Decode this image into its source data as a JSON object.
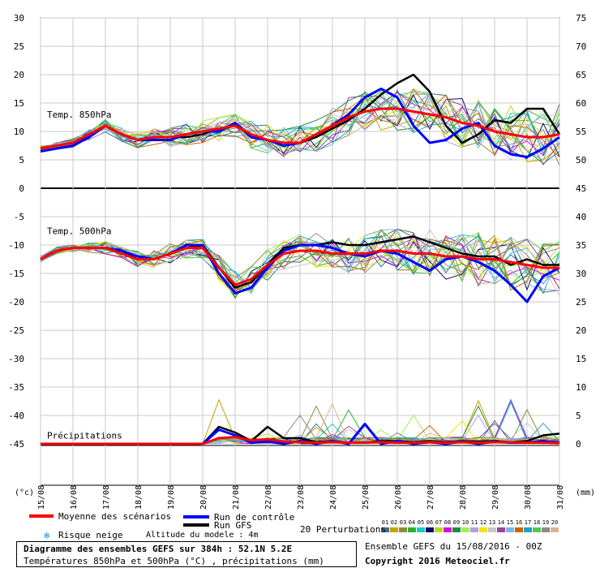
{
  "chart_data": {
    "type": "line",
    "panels": [
      {
        "name": "t850",
        "label": "Temp. 850hPa",
        "ylim_left": [
          0,
          30
        ],
        "ylim_right": [
          45,
          75
        ]
      },
      {
        "name": "t500",
        "label": "Temp. 500hPa",
        "ylim_left": [
          -25,
          -5
        ],
        "ylim_right": [
          20,
          40
        ]
      },
      {
        "name": "precip",
        "label": "Précipitations",
        "ylim_left": [
          -45,
          -30
        ],
        "ylim_right": [
          0,
          15
        ]
      }
    ],
    "y_left_ticks": [
      30,
      25,
      20,
      15,
      10,
      5,
      0,
      -5,
      -10,
      -15,
      -20,
      -25,
      -30,
      -35,
      -40,
      -45
    ],
    "y_right_ticks": [
      75,
      70,
      65,
      60,
      55,
      50,
      45,
      40,
      35,
      30,
      25,
      20,
      15,
      10,
      5,
      0
    ],
    "y_left_unit": "(°c)",
    "y_right_unit": "(mm)",
    "x_dates": [
      "15/08",
      "16/08",
      "17/08",
      "18/08",
      "19/08",
      "20/08",
      "21/08",
      "22/08",
      "23/08",
      "24/08",
      "25/08",
      "26/08",
      "27/08",
      "28/08",
      "29/08",
      "30/08",
      "31/08"
    ],
    "x_days": [
      0,
      0.5,
      1,
      1.5,
      2,
      2.5,
      3,
      3.5,
      4,
      4.5,
      5,
      5.5,
      6,
      6.5,
      7,
      7.5,
      8,
      8.5,
      9,
      9.5,
      10,
      10.5,
      11,
      11.5,
      12,
      12.5,
      13,
      13.5,
      14,
      14.5,
      15,
      15.5,
      16
    ],
    "series": [
      {
        "name": "Moyenne des scénarios",
        "color": "#ff0000",
        "t850": [
          7,
          7.5,
          8,
          9.5,
          11,
          9.5,
          8.5,
          9,
          9,
          9.5,
          10,
          10.5,
          11,
          9.5,
          8.5,
          8,
          8,
          9.5,
          11,
          12.5,
          13.5,
          14,
          14,
          13.5,
          13,
          12.5,
          11.5,
          11,
          10,
          9.5,
          9,
          9,
          9.5
        ],
        "t500": [
          -12.5,
          -11,
          -10.5,
          -10.5,
          -10.5,
          -11.5,
          -12.5,
          -12.5,
          -11.5,
          -10.5,
          -10.5,
          -14,
          -17,
          -16,
          -13.5,
          -11.5,
          -11,
          -11,
          -11.5,
          -11.5,
          -11.5,
          -11,
          -11,
          -11.5,
          -11.5,
          -12,
          -12,
          -12.5,
          -12.5,
          -13,
          -13.5,
          -14,
          -14
        ],
        "precip": [
          0,
          0,
          0,
          0,
          0,
          0,
          0,
          0,
          0,
          0,
          0,
          1,
          1.2,
          0.6,
          0.8,
          0.4,
          0.3,
          0.2,
          0.3,
          0.2,
          0.2,
          0.3,
          0.2,
          0.2,
          0.3,
          0.2,
          0.3,
          0.2,
          0.3,
          0.3,
          0.2,
          0.2,
          0.1
        ]
      },
      {
        "name": "Run de contrôle",
        "color": "#0000ff",
        "t850": [
          6.5,
          7,
          7.5,
          9,
          11,
          9.5,
          8.5,
          8.5,
          8.5,
          9.5,
          10,
          10,
          11.5,
          9,
          8.5,
          7.5,
          8,
          9.5,
          11,
          13,
          16,
          17.5,
          16,
          11,
          8,
          8.5,
          10.5,
          11.5,
          7.5,
          6,
          5.5,
          7,
          9
        ],
        "t500": [
          -12.5,
          -11,
          -10.5,
          -10.5,
          -10.5,
          -11,
          -12,
          -12.5,
          -11.5,
          -10,
          -10,
          -15,
          -18.5,
          -17.5,
          -14,
          -11,
          -10,
          -10,
          -10.5,
          -11.5,
          -12,
          -11,
          -11.5,
          -13,
          -14.5,
          -12.5,
          -12,
          -13,
          -14.5,
          -17,
          -20,
          -15.5,
          -14
        ],
        "precip": [
          0,
          0,
          0,
          0,
          0,
          0,
          0,
          0,
          0,
          0,
          0,
          2.5,
          1.5,
          0.2,
          0.4,
          0,
          0.5,
          0,
          0.5,
          0,
          3.5,
          0,
          0.5,
          0,
          0.3,
          0,
          0.4,
          0,
          0.4,
          0.2,
          0.2,
          0.5,
          0.2
        ]
      },
      {
        "name": "Run GFS",
        "color": "#000000",
        "t850": [
          7,
          7.5,
          8,
          9.5,
          11,
          9.5,
          8.5,
          9,
          9,
          9,
          9.5,
          10.5,
          11,
          9.5,
          8.5,
          8,
          8,
          9,
          10.5,
          12,
          14,
          16.5,
          18.5,
          20,
          17,
          11,
          8,
          9.5,
          12,
          11.5,
          14,
          14,
          9.5
        ],
        "t500": [
          -12.5,
          -11,
          -10.5,
          -10.5,
          -10.5,
          -11,
          -12.5,
          -12.5,
          -11.5,
          -10.5,
          -10,
          -14,
          -17.5,
          -16.5,
          -13.5,
          -10.5,
          -10,
          -10,
          -9.5,
          -10,
          -10,
          -9.5,
          -9,
          -8.5,
          -9.5,
          -10.5,
          -11.5,
          -12,
          -12,
          -13.5,
          -12.5,
          -13.5,
          -13.5
        ],
        "precip": [
          0,
          0,
          0,
          0,
          0,
          0,
          0,
          0,
          0,
          0,
          0,
          3,
          2,
          0.5,
          3,
          1,
          1,
          0.3,
          0.5,
          0.2,
          0.2,
          0.5,
          0.5,
          0.3,
          0.5,
          0.3,
          0.5,
          0.4,
          0.5,
          0.3,
          0.5,
          1.5,
          1.8
        ]
      }
    ],
    "perturbation_colors": [
      "#3c6e96",
      "#c8a000",
      "#8c8c3c",
      "#28b428",
      "#1ec8c8",
      "#0a0a64",
      "#b4dc1e",
      "#dc00dc",
      "#1e8c3c",
      "#a0f050",
      "#b4a0dc",
      "#f0e600",
      "#c8c8c8",
      "#964696",
      "#78b4f0",
      "#c86400",
      "#1ea0c8",
      "#50c850",
      "#8c8c8c",
      "#dcb48c"
    ],
    "legend": {
      "mean_label": "Moyenne des scénarios",
      "control_label": "Run de contrôle",
      "gfs_label": "Run GFS",
      "snow_label": "Risque neige",
      "perturbations_label": "20 Perturbations",
      "perturbation_numbers": [
        "01",
        "02",
        "03",
        "04",
        "05",
        "06",
        "07",
        "08",
        "09",
        "10",
        "11",
        "12",
        "13",
        "14",
        "15",
        "16",
        "17",
        "18",
        "19",
        "20"
      ],
      "model_altitude": "Altitude du modele : 4m"
    },
    "footer": {
      "title": "Diagramme des ensembles GEFS sur 384h : 52.1N 5.2E",
      "subtitle": "Températures 850hPa et 500hPa (°C) , précipitations (mm)",
      "ensemble_info": "Ensemble GEFS du 15/08/2016 - 00Z",
      "copyright": "Copyright 2016 Meteociel.fr"
    }
  }
}
